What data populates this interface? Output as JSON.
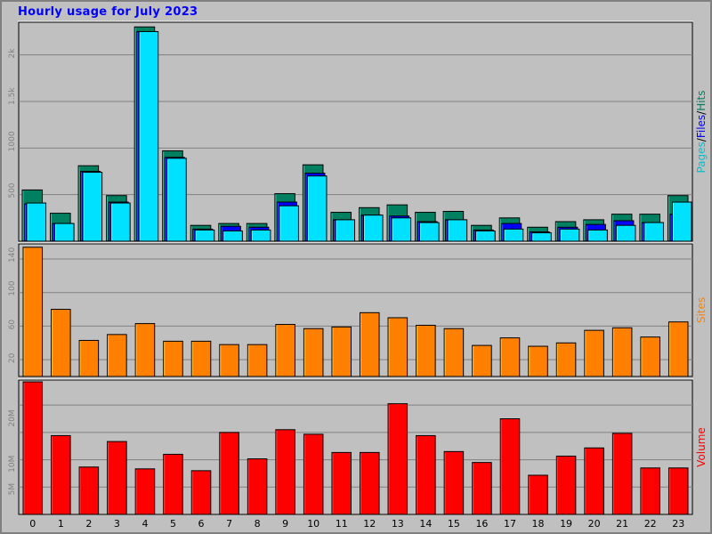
{
  "title": "Hourly usage for July 2023",
  "chart_data": [
    {
      "type": "bar",
      "panel": "hits-files-pages",
      "categories": [
        "0",
        "1",
        "2",
        "3",
        "4",
        "5",
        "6",
        "7",
        "8",
        "9",
        "10",
        "11",
        "12",
        "13",
        "14",
        "15",
        "16",
        "17",
        "18",
        "19",
        "20",
        "21",
        "22",
        "23"
      ],
      "series": [
        {
          "name": "Hits",
          "color": "#008060",
          "values": [
            550,
            300,
            810,
            490,
            2300,
            970,
            170,
            190,
            190,
            510,
            820,
            310,
            360,
            390,
            310,
            320,
            170,
            250,
            150,
            210,
            230,
            290,
            290,
            490
          ]
        },
        {
          "name": "Files",
          "color": "#0000ff",
          "values": [
            400,
            190,
            750,
            420,
            2250,
            900,
            130,
            160,
            150,
            420,
            730,
            230,
            280,
            270,
            210,
            230,
            120,
            190,
            100,
            150,
            180,
            220,
            200,
            290
          ]
        },
        {
          "name": "Pages",
          "color": "#00e0ff",
          "values": [
            410,
            190,
            740,
            410,
            2250,
            890,
            120,
            110,
            120,
            380,
            700,
            230,
            280,
            250,
            200,
            230,
            110,
            130,
            90,
            130,
            120,
            170,
            200,
            420
          ]
        }
      ],
      "yticks": [
        "500",
        "1000",
        "1.5k",
        "2k"
      ],
      "ytick_values": [
        500,
        1000,
        1500,
        2000
      ],
      "ylim": [
        0,
        2350
      ],
      "ylabel_parts": [
        {
          "text": "Pages",
          "color": "#00c0d0"
        },
        {
          "text": "/",
          "color": "#000000"
        },
        {
          "text": "Files",
          "color": "#0000ff"
        },
        {
          "text": "/",
          "color": "#000000"
        },
        {
          "text": "Hits",
          "color": "#008060"
        }
      ]
    },
    {
      "type": "bar",
      "panel": "sites",
      "categories": [
        "0",
        "1",
        "2",
        "3",
        "4",
        "5",
        "6",
        "7",
        "8",
        "9",
        "10",
        "11",
        "12",
        "13",
        "14",
        "15",
        "16",
        "17",
        "18",
        "19",
        "20",
        "21",
        "22",
        "23"
      ],
      "series": [
        {
          "name": "Sites",
          "color": "#ff8000",
          "values": [
            154,
            80,
            43,
            50,
            63,
            42,
            42,
            38,
            38,
            62,
            57,
            59,
            76,
            70,
            61,
            57,
            37,
            46,
            36,
            40,
            55,
            58,
            47,
            65
          ]
        }
      ],
      "yticks": [
        "20",
        "60",
        "100",
        "140"
      ],
      "ytick_values": [
        20,
        60,
        100,
        140
      ],
      "ylim": [
        0,
        158
      ],
      "ylabel": "Sites",
      "ylabel_color": "#ff8000"
    },
    {
      "type": "bar",
      "panel": "volume",
      "categories": [
        "0",
        "1",
        "2",
        "3",
        "4",
        "5",
        "6",
        "7",
        "8",
        "9",
        "10",
        "11",
        "12",
        "13",
        "14",
        "15",
        "16",
        "17",
        "18",
        "19",
        "20",
        "21",
        "22",
        "23"
      ],
      "series": [
        {
          "name": "Volume",
          "color": "#ff0000",
          "values": [
            29.1,
            17.3,
            10.4,
            16.0,
            10.0,
            13.2,
            9.6,
            18.0,
            12.2,
            18.6,
            17.6,
            13.6,
            13.6,
            24.3,
            17.3,
            13.8,
            11.4,
            21.0,
            8.6,
            12.8,
            14.6,
            17.8,
            10.2,
            10.2
          ]
        }
      ],
      "yticks": [
        "5M",
        "10M",
        "20M"
      ],
      "ytick_values": [
        5,
        10,
        20
      ],
      "gridlines": [
        6,
        12,
        18,
        24
      ],
      "ylim": [
        0,
        29.5
      ],
      "ylabel": "Volume",
      "ylabel_color": "#ff0000"
    }
  ]
}
